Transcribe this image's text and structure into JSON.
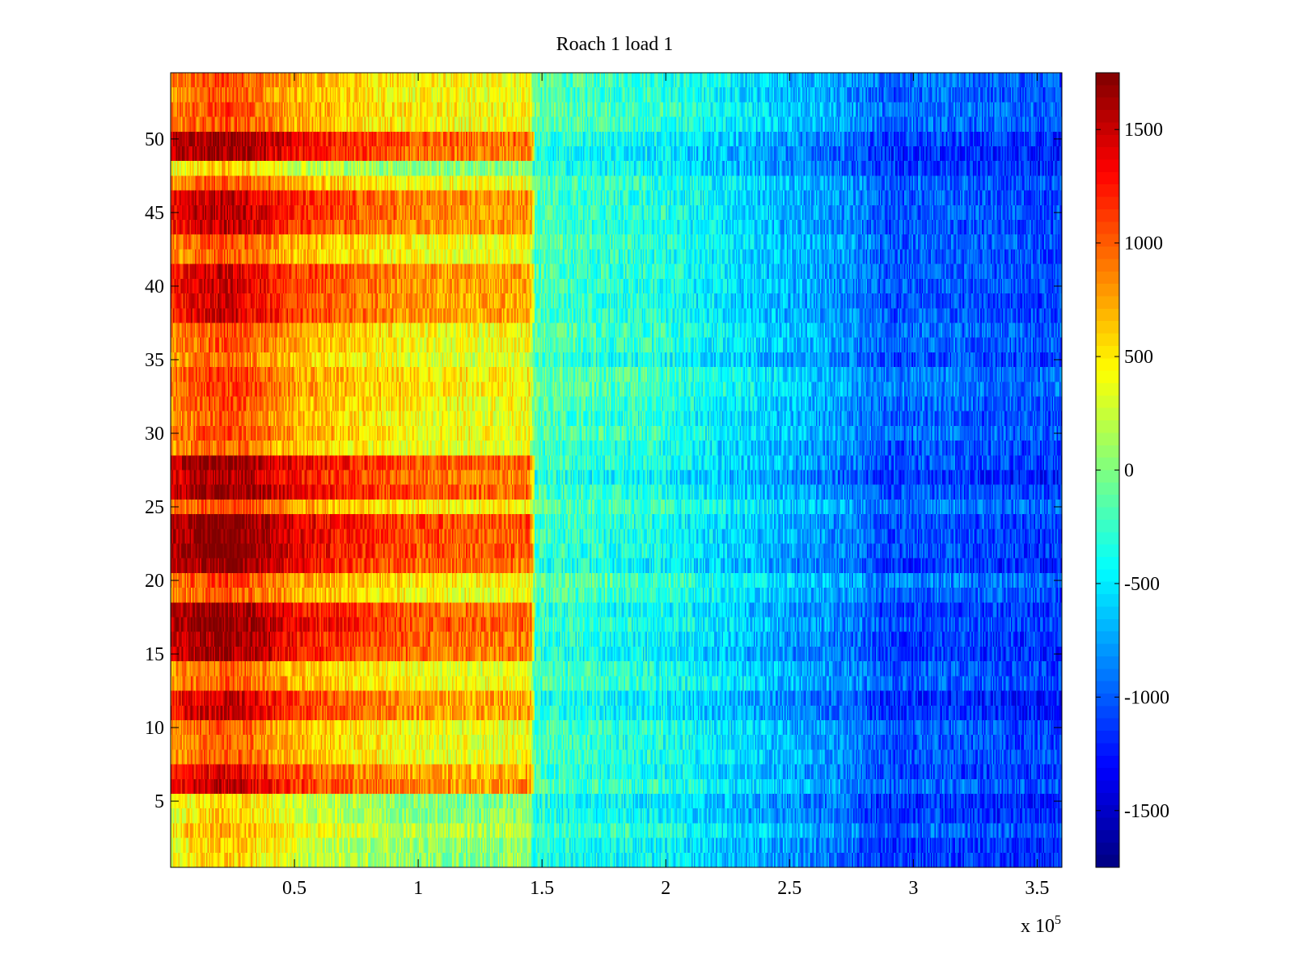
{
  "chart_data": {
    "type": "heatmap",
    "title": "Roach 1 load 1",
    "xlabel": "",
    "ylabel": "",
    "x_multiplier_label": "x 10",
    "x_multiplier_exponent": "5",
    "xlim": [
      0.0,
      3.6
    ],
    "ylim": [
      0.5,
      54.5
    ],
    "rows": 54,
    "x_ticks": [
      {
        "value": 0.5,
        "label": "0.5"
      },
      {
        "value": 1.0,
        "label": "1"
      },
      {
        "value": 1.5,
        "label": "1.5"
      },
      {
        "value": 2.0,
        "label": "2"
      },
      {
        "value": 2.5,
        "label": "2.5"
      },
      {
        "value": 3.0,
        "label": "3"
      },
      {
        "value": 3.5,
        "label": "3.5"
      }
    ],
    "y_ticks": [
      {
        "value": 5,
        "label": "5"
      },
      {
        "value": 10,
        "label": "10"
      },
      {
        "value": 15,
        "label": "15"
      },
      {
        "value": 20,
        "label": "20"
      },
      {
        "value": 25,
        "label": "25"
      },
      {
        "value": 30,
        "label": "30"
      },
      {
        "value": 35,
        "label": "35"
      },
      {
        "value": 40,
        "label": "40"
      },
      {
        "value": 45,
        "label": "45"
      },
      {
        "value": 50,
        "label": "50"
      }
    ],
    "colorbar": {
      "colormap": "jet",
      "range": [
        -1750,
        1750
      ],
      "ticks": [
        {
          "value": 1500,
          "label": "1500"
        },
        {
          "value": 1000,
          "label": "1000"
        },
        {
          "value": 500,
          "label": "500"
        },
        {
          "value": 0,
          "label": "0"
        },
        {
          "value": -500,
          "label": "-500"
        },
        {
          "value": -1000,
          "label": "-1000"
        },
        {
          "value": -1500,
          "label": "-1500"
        }
      ]
    },
    "x_profile": {
      "x": [
        0.0,
        0.1,
        0.2,
        0.3,
        0.4,
        0.5,
        0.75,
        1.0,
        1.25,
        1.45,
        1.47,
        1.75,
        1.98,
        2.2,
        2.5,
        2.75,
        2.9,
        3.1,
        3.3,
        3.6
      ],
      "value": [
        800,
        950,
        1050,
        1000,
        850,
        700,
        550,
        420,
        380,
        420,
        -150,
        -250,
        -300,
        -450,
        -650,
        -800,
        -1000,
        -950,
        -1000,
        -1050
      ]
    },
    "row_offsets": [
      {
        "rows": [
          49,
          50
        ],
        "offset": 700
      },
      {
        "rows": [
          48
        ],
        "offset": -400
      },
      {
        "rows": [
          44,
          45,
          46
        ],
        "offset": 450
      },
      {
        "rows": [
          38,
          39,
          40,
          41
        ],
        "offset": 400
      },
      {
        "rows": [
          26,
          27,
          28
        ],
        "offset": 650
      },
      {
        "rows": [
          21,
          22,
          23,
          24
        ],
        "offset": 700
      },
      {
        "rows": [
          15,
          16,
          17,
          18
        ],
        "offset": 650
      },
      {
        "rows": [
          11,
          12
        ],
        "offset": 550
      },
      {
        "rows": [
          6,
          7
        ],
        "offset": 400
      },
      {
        "rows": [
          1,
          2,
          3,
          4,
          5
        ],
        "offset": -400
      }
    ]
  }
}
